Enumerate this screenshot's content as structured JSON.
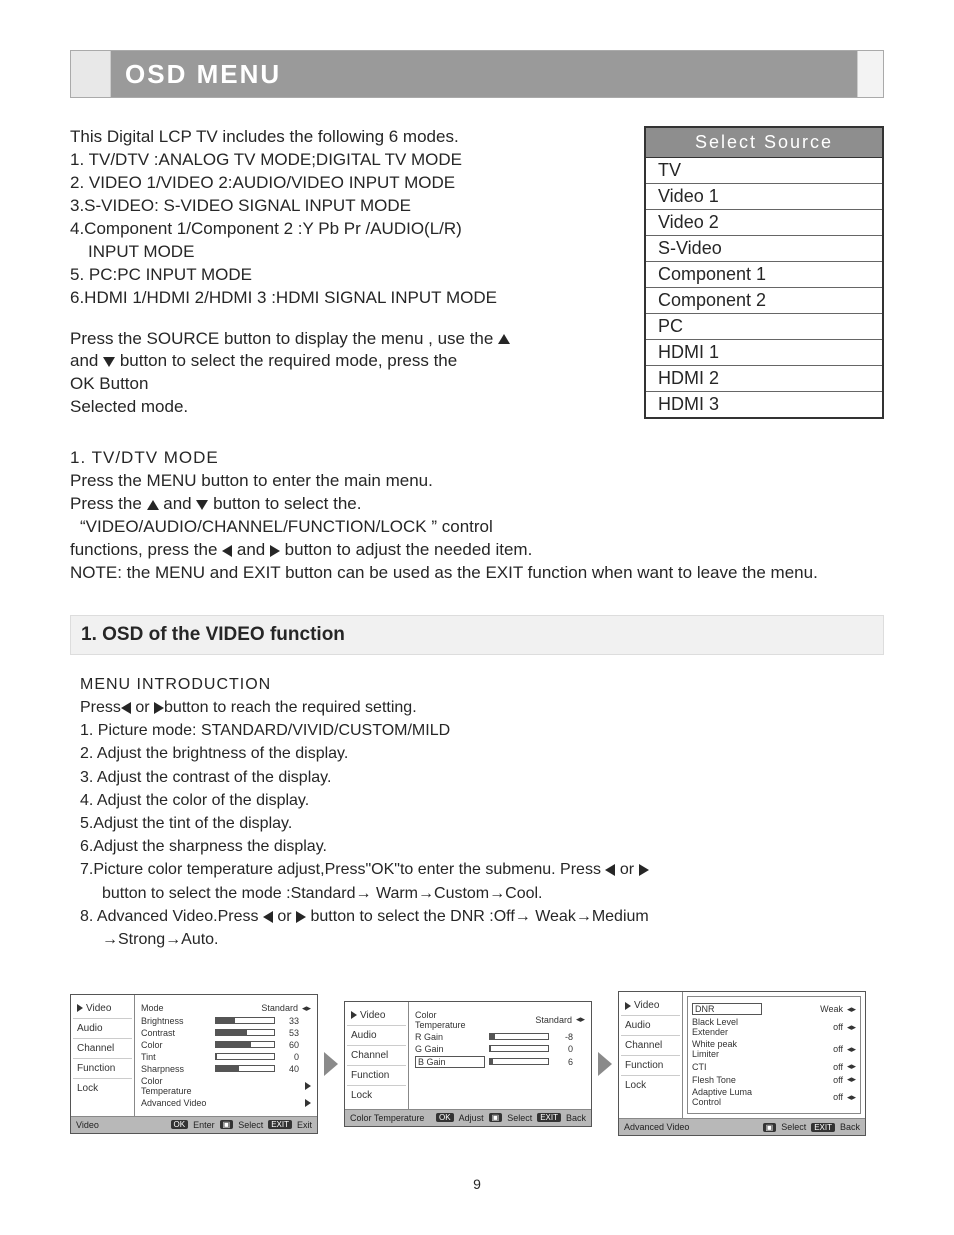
{
  "header": {
    "title": "OSD MENU"
  },
  "intro": {
    "lead": "This Digital LCP TV includes the following 6 modes.",
    "modes": [
      "1. TV/DTV :ANALOG TV MODE;DIGITAL TV MODE",
      "2. VIDEO 1/VIDEO 2:AUDIO/VIDEO INPUT MODE",
      "3.S-VIDEO: S-VIDEO SIGNAL INPUT MODE",
      "4.Component 1/Component 2 :Y Pb Pr /AUDIO(L/R)",
      "INPUT MODE",
      "5. PC:PC INPUT MODE",
      "6.HDMI 1/HDMI 2/HDMI 3 :HDMI SIGNAL INPUT MODE"
    ],
    "press1a": "Press the SOURCE button to display the menu , use the ",
    "press1b": "and ",
    "press1c": " button to select the required  mode, press the",
    "press2": "OK Button",
    "press3": "Selected mode."
  },
  "select_source": {
    "title": "Select Source",
    "items": [
      "TV",
      "Video 1",
      "Video 2",
      "S-Video",
      "Component 1",
      "Component 2",
      "PC",
      "HDMI 1",
      "HDMI 2",
      "HDMI 3"
    ]
  },
  "tvdtv": {
    "head": "1.  TV/DTV  MODE",
    "l1": "Press the MENU button to enter the main menu.",
    "l2a": "Press the ",
    "l2b": " and ",
    "l2c": " button to select the.",
    "l3a": "“VIDEO/AUDIO/CHANNEL/FUNCTION/LOCK ”  control",
    "l4a": "functions, press the ",
    "l4b": " and ",
    "l4c": " button to adjust the needed item.",
    "l5": "NOTE: the MENU and  EXIT button can be used as the EXIT function when want to leave the menu."
  },
  "section1_title_num": "1",
  "section1_title_rest": ". OSD of the VIDEO function",
  "menu_intro": {
    "head": "MENU INTRODUCTION",
    "l0a": "Press",
    "l0b": " or ",
    "l0c": "button to reach the required setting.",
    "items": [
      "1. Picture mode: STANDARD/VIVID/CUSTOM/MILD",
      "2. Adjust the brightness of the display.",
      "3. Adjust the contrast of the display.",
      "4. Adjust the color of the display.",
      "5.Adjust the tint of the display.",
      "6.Adjust the sharpness the display."
    ],
    "l7a": "7.Picture color temperature adjust,Press\"OK\"to enter  the submenu. Press ",
    "l7b": " or ",
    "l7c": "",
    "l7sub": "button to select the mode :Standard→ Warm→Custom→Cool.",
    "l8a": "8. Advanced Video.Press ",
    "l8b": " or ",
    "l8c": " button to select the DNR :Off→ Weak→Medium",
    "l8sub": "→Strong→Auto."
  },
  "side_labels": [
    "Video",
    "Audio",
    "Channel",
    "Function",
    "Lock"
  ],
  "osd1": {
    "footer_left": "Video",
    "footer_btns": [
      "OK",
      "Enter",
      "",
      "Select",
      "EXIT",
      "Exit"
    ],
    "rows": [
      {
        "label": "Mode",
        "text": "Standard",
        "lr": true
      },
      {
        "label": "Brightness",
        "bar": 33,
        "val": "33"
      },
      {
        "label": "Contrast",
        "bar": 53,
        "val": "53"
      },
      {
        "label": "Color",
        "bar": 60,
        "val": "60"
      },
      {
        "label": "Tint",
        "bar": 0,
        "val": "0"
      },
      {
        "label": "Sharpness",
        "bar": 40,
        "val": "40"
      },
      {
        "label": "Color Temperature",
        "tri": true
      },
      {
        "label": "Advanced Video",
        "tri": true
      }
    ]
  },
  "osd2": {
    "footer_left": "Color Temperature",
    "footer_btns": [
      "OK",
      "Adjust",
      "",
      "Select",
      "EXIT",
      "Back"
    ],
    "rows": [
      {
        "label": "Color Temperature",
        "text": "Standard",
        "lr": true
      },
      {
        "label": "R Gain",
        "bar": 8,
        "neg": true,
        "val": "-8"
      },
      {
        "label": "G Gain",
        "bar": 0,
        "val": "0"
      },
      {
        "label": "B Gain",
        "box": true,
        "bar": 6,
        "val": "6"
      }
    ]
  },
  "osd3": {
    "footer_left": "Advanced Video",
    "footer_btns": [
      "",
      "Select",
      "EXIT",
      "Back"
    ],
    "rows": [
      {
        "label": "DNR",
        "text": "Weak",
        "lr": true,
        "box": true
      },
      {
        "label": "Black Level Extender",
        "text": "off",
        "lr": true
      },
      {
        "label": "White peak Limiter",
        "text": "off",
        "lr": true
      },
      {
        "label": "CTI",
        "text": "off",
        "lr": true
      },
      {
        "label": "Flesh Tone",
        "text": "off",
        "lr": true
      },
      {
        "label": "Adaptive Luma Control",
        "text": "off",
        "lr": true
      }
    ]
  },
  "page_number": "9"
}
